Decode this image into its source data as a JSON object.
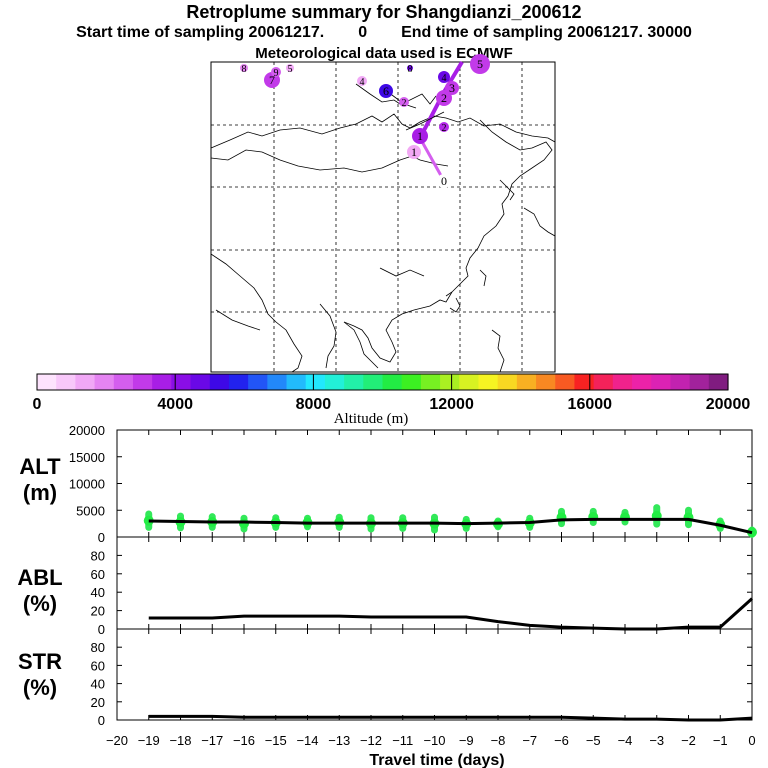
{
  "header": {
    "title": "Retroplume summary for Shangdianzi_200612",
    "start_label": "Start time of sampling 20061217.",
    "start_value": "0",
    "end_label": "End time of sampling 20061217. 30000",
    "met_label": "Meteorological data used is ECMWF"
  },
  "colorbar": {
    "xlabel": "Altitude (m)",
    "tick_labels": [
      "0",
      "4000",
      "8000",
      "12000",
      "16000",
      "20000"
    ],
    "colors": [
      "#fde3fd",
      "#f8c8fa",
      "#f1a8f6",
      "#e584f2",
      "#d45eee",
      "#c23ae9",
      "#a81ee6",
      "#8a0ee6",
      "#6a08e6",
      "#3e08e6",
      "#2222ee",
      "#2255f6",
      "#2288fa",
      "#22bbfc",
      "#22e8fd",
      "#22f0d8",
      "#22f0a8",
      "#22ee78",
      "#22ec44",
      "#3cf022",
      "#77f022",
      "#aaf022",
      "#d8f222",
      "#f6f422",
      "#f8d822",
      "#f8b022",
      "#f88822",
      "#f85a22",
      "#f82222",
      "#f4225a",
      "#f0228c",
      "#ec22a8",
      "#dc22b4",
      "#c222b0",
      "#a2229c",
      "#801c80"
    ]
  },
  "map": {
    "markers": [
      {
        "label": "0",
        "color": "#ffffff"
      },
      {
        "label": "1",
        "color": "#f2a8f4"
      },
      {
        "label": "1",
        "color": "#a81ee6"
      },
      {
        "label": "2",
        "color": "#b42ae8"
      },
      {
        "label": "2",
        "color": "#c23ae9"
      },
      {
        "label": "3",
        "color": "#c23ae9"
      },
      {
        "label": "4",
        "color": "#6a08e6"
      },
      {
        "label": "5",
        "color": "#c23ae9"
      },
      {
        "label": "6",
        "color": "#3e08e6"
      },
      {
        "label": "7",
        "color": "#c23ae9"
      },
      {
        "label": "8",
        "color": "#e584f2"
      },
      {
        "label": "9",
        "color": "#d45eee"
      },
      {
        "label": "4",
        "color": "#f1a8f6"
      },
      {
        "label": "5",
        "color": "#f1a8f6"
      },
      {
        "label": "2",
        "color": "#d45eee"
      },
      {
        "label": "8",
        "color": "#6a08e6"
      }
    ]
  },
  "chart_data": [
    {
      "type": "scatter",
      "name": "ALT",
      "ylabel_line1": "ALT",
      "ylabel_line2": "(m)",
      "xlabel": "Travel time (days)",
      "ylim": [
        0,
        20000
      ],
      "yticks": [
        0,
        5000,
        10000,
        15000,
        20000
      ],
      "xlim": [
        -20,
        0
      ],
      "xticks": [
        -20,
        -19,
        -18,
        -17,
        -16,
        -15,
        -14,
        -13,
        -12,
        -11,
        -10,
        -9,
        -8,
        -7,
        -6,
        -5,
        -4,
        -3,
        -2,
        -1,
        0
      ],
      "mean_line": {
        "x": [
          0,
          -1,
          -2,
          -3,
          -4,
          -5,
          -6,
          -7,
          -8,
          -9,
          -10,
          -11,
          -12,
          -13,
          -14,
          -15,
          -16,
          -17,
          -18,
          -19
        ],
        "y": [
          800,
          2200,
          3300,
          3300,
          3300,
          3300,
          3200,
          2700,
          2600,
          2500,
          2600,
          2600,
          2600,
          2600,
          2600,
          2700,
          2800,
          2800,
          2900,
          3000
        ]
      },
      "scatter_points": {
        "x": [
          -19,
          -18,
          -17,
          -16,
          -15,
          -14,
          -13,
          -12,
          -11,
          -10,
          -9,
          -8,
          -7,
          -6,
          -5,
          -4,
          -3,
          -2,
          -1,
          0
        ],
        "y_min": [
          1800,
          1700,
          1800,
          1500,
          1800,
          1900,
          1800,
          1500,
          1600,
          1300,
          1600,
          1900,
          1800,
          2500,
          2700,
          2800,
          2400,
          2300,
          1600,
          500
        ],
        "y_max": [
          4300,
          3900,
          3800,
          3500,
          3600,
          3500,
          3700,
          3600,
          3600,
          3700,
          3300,
          3000,
          3500,
          4800,
          4800,
          4600,
          5500,
          5000,
          3000,
          1300
        ]
      }
    },
    {
      "type": "line",
      "name": "ABL",
      "ylabel_line1": "ABL",
      "ylabel_line2": "(%)",
      "ylim": [
        0,
        100
      ],
      "yticks": [
        0,
        20,
        40,
        60,
        80
      ],
      "x": [
        0,
        -1,
        -2,
        -3,
        -4,
        -5,
        -6,
        -7,
        -8,
        -9,
        -10,
        -11,
        -12,
        -13,
        -14,
        -15,
        -16,
        -17,
        -18,
        -19
      ],
      "values": [
        33,
        2,
        2,
        0,
        0,
        1,
        2,
        4,
        8,
        13,
        13,
        13,
        13,
        14,
        14,
        14,
        14,
        12,
        12,
        12
      ]
    },
    {
      "type": "line",
      "name": "STR",
      "ylabel_line1": "STR",
      "ylabel_line2": "(%)",
      "ylim": [
        0,
        100
      ],
      "yticks": [
        0,
        20,
        40,
        60,
        80
      ],
      "x": [
        0,
        -1,
        -2,
        -3,
        -4,
        -5,
        -6,
        -7,
        -8,
        -9,
        -10,
        -11,
        -12,
        -13,
        -14,
        -15,
        -16,
        -17,
        -18,
        -19
      ],
      "values": [
        2,
        0,
        0,
        1,
        1,
        2,
        3,
        3,
        3,
        3,
        3,
        3,
        3,
        3,
        3,
        3,
        3,
        4,
        4,
        4
      ]
    }
  ]
}
